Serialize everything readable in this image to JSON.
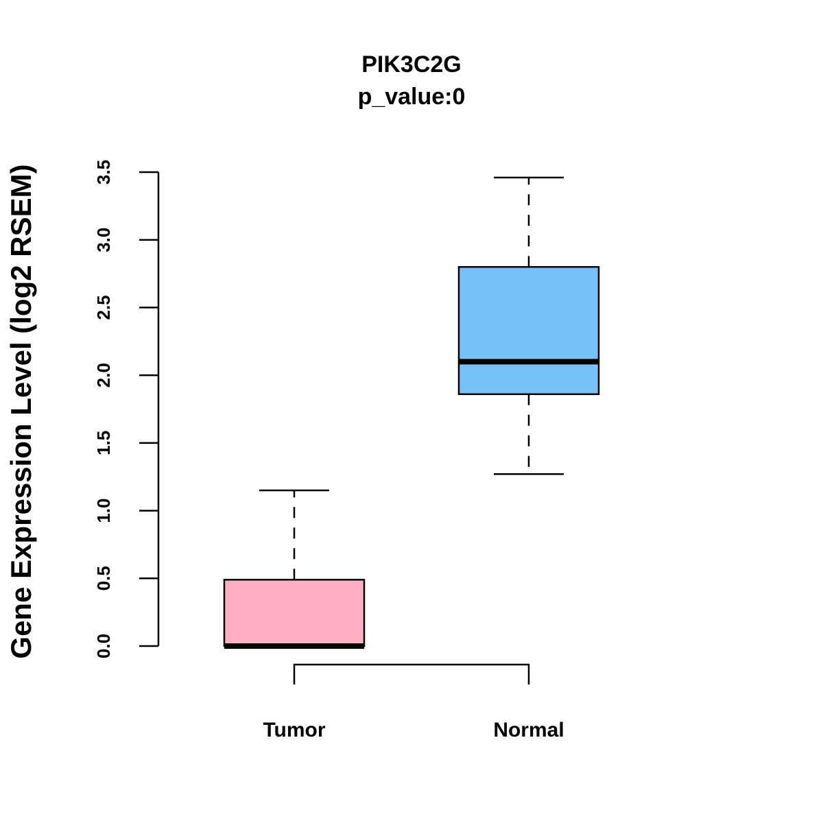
{
  "chart_data": {
    "type": "boxplot",
    "title": "PIK3C2G",
    "subtitle": "p_value:0",
    "xlabel": "",
    "ylabel": "Gene Expression Level (log2 RSEM)",
    "ylim": [
      0,
      3.5
    ],
    "yticks": [
      "0.0",
      "0.5",
      "1.0",
      "1.5",
      "2.0",
      "2.5",
      "3.0",
      "3.5"
    ],
    "ytick_values": [
      0,
      0.5,
      1.0,
      1.5,
      2.0,
      2.5,
      3.0,
      3.5
    ],
    "categories": [
      "Tumor",
      "Normal"
    ],
    "boxes": [
      {
        "name": "Tumor",
        "color": "#FFB0C2",
        "min": 0.0,
        "q1": 0.0,
        "median": 0.0,
        "q3": 0.49,
        "max": 1.15
      },
      {
        "name": "Normal",
        "color": "#78C1F8",
        "min": 1.27,
        "q1": 1.86,
        "median": 2.1,
        "q3": 2.8,
        "max": 3.46
      }
    ],
    "significance_bracket": {
      "from": "Tumor",
      "to": "Normal"
    },
    "grid": false
  }
}
